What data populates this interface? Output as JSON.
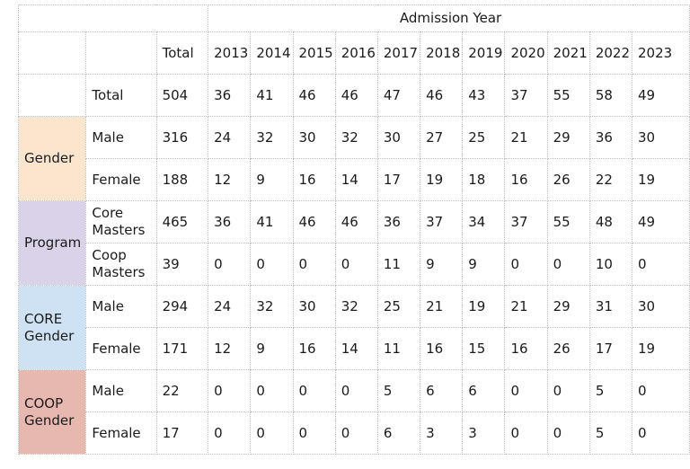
{
  "chart_data": {
    "type": "table",
    "title": "Admission Year",
    "columns": [
      "Total",
      "2013",
      "2014",
      "2015",
      "2016",
      "2017",
      "2018",
      "2019",
      "2020",
      "2021",
      "2022",
      "2023"
    ],
    "rows": [
      {
        "label": "Total",
        "values": [
          504,
          36,
          41,
          46,
          46,
          47,
          46,
          43,
          37,
          55,
          58,
          49
        ]
      },
      {
        "group": "Gender",
        "span": 2,
        "color_key": "gender_bg",
        "label": "Male",
        "values": [
          316,
          24,
          32,
          30,
          32,
          30,
          27,
          25,
          21,
          29,
          36,
          30
        ]
      },
      {
        "label": "Female",
        "values": [
          188,
          12,
          9,
          16,
          14,
          17,
          19,
          18,
          16,
          26,
          22,
          19
        ]
      },
      {
        "group": "Program",
        "span": 2,
        "color_key": "program_bg",
        "label": "Core Masters",
        "values": [
          465,
          36,
          41,
          46,
          46,
          36,
          37,
          34,
          37,
          55,
          48,
          49
        ]
      },
      {
        "label": "Coop Masters",
        "values": [
          39,
          0,
          0,
          0,
          0,
          11,
          9,
          9,
          0,
          0,
          10,
          0
        ]
      },
      {
        "group": "CORE Gender",
        "span": 2,
        "color_key": "core_gender_bg",
        "label": "Male",
        "values": [
          294,
          24,
          32,
          30,
          32,
          25,
          21,
          19,
          21,
          29,
          31,
          30
        ]
      },
      {
        "label": "Female",
        "values": [
          171,
          12,
          9,
          16,
          14,
          11,
          16,
          15,
          16,
          26,
          17,
          19
        ]
      },
      {
        "group": "COOP Gender",
        "span": 2,
        "color_key": "coop_gender_bg",
        "label": "Male",
        "values": [
          22,
          0,
          0,
          0,
          0,
          5,
          6,
          6,
          0,
          0,
          5,
          0
        ]
      },
      {
        "label": "Female",
        "values": [
          17,
          0,
          0,
          0,
          0,
          6,
          3,
          3,
          0,
          0,
          5,
          0
        ]
      }
    ],
    "layout_hints": {
      "grid": "dotted",
      "group_column_spans_pairs_of_rows": true
    }
  },
  "colors": {
    "admission_year_bg": "#f9dfc4",
    "head_bg": "#fdf2cc",
    "gender_bg": "#fce5cd",
    "program_bg": "#d9d2e9",
    "core_gender_bg": "#cfe2f3",
    "coop_gender_bg": "#e6b8af",
    "border": "#bfbfbf",
    "text": "#1b1b1b",
    "cell_bg": "#ffffff"
  }
}
